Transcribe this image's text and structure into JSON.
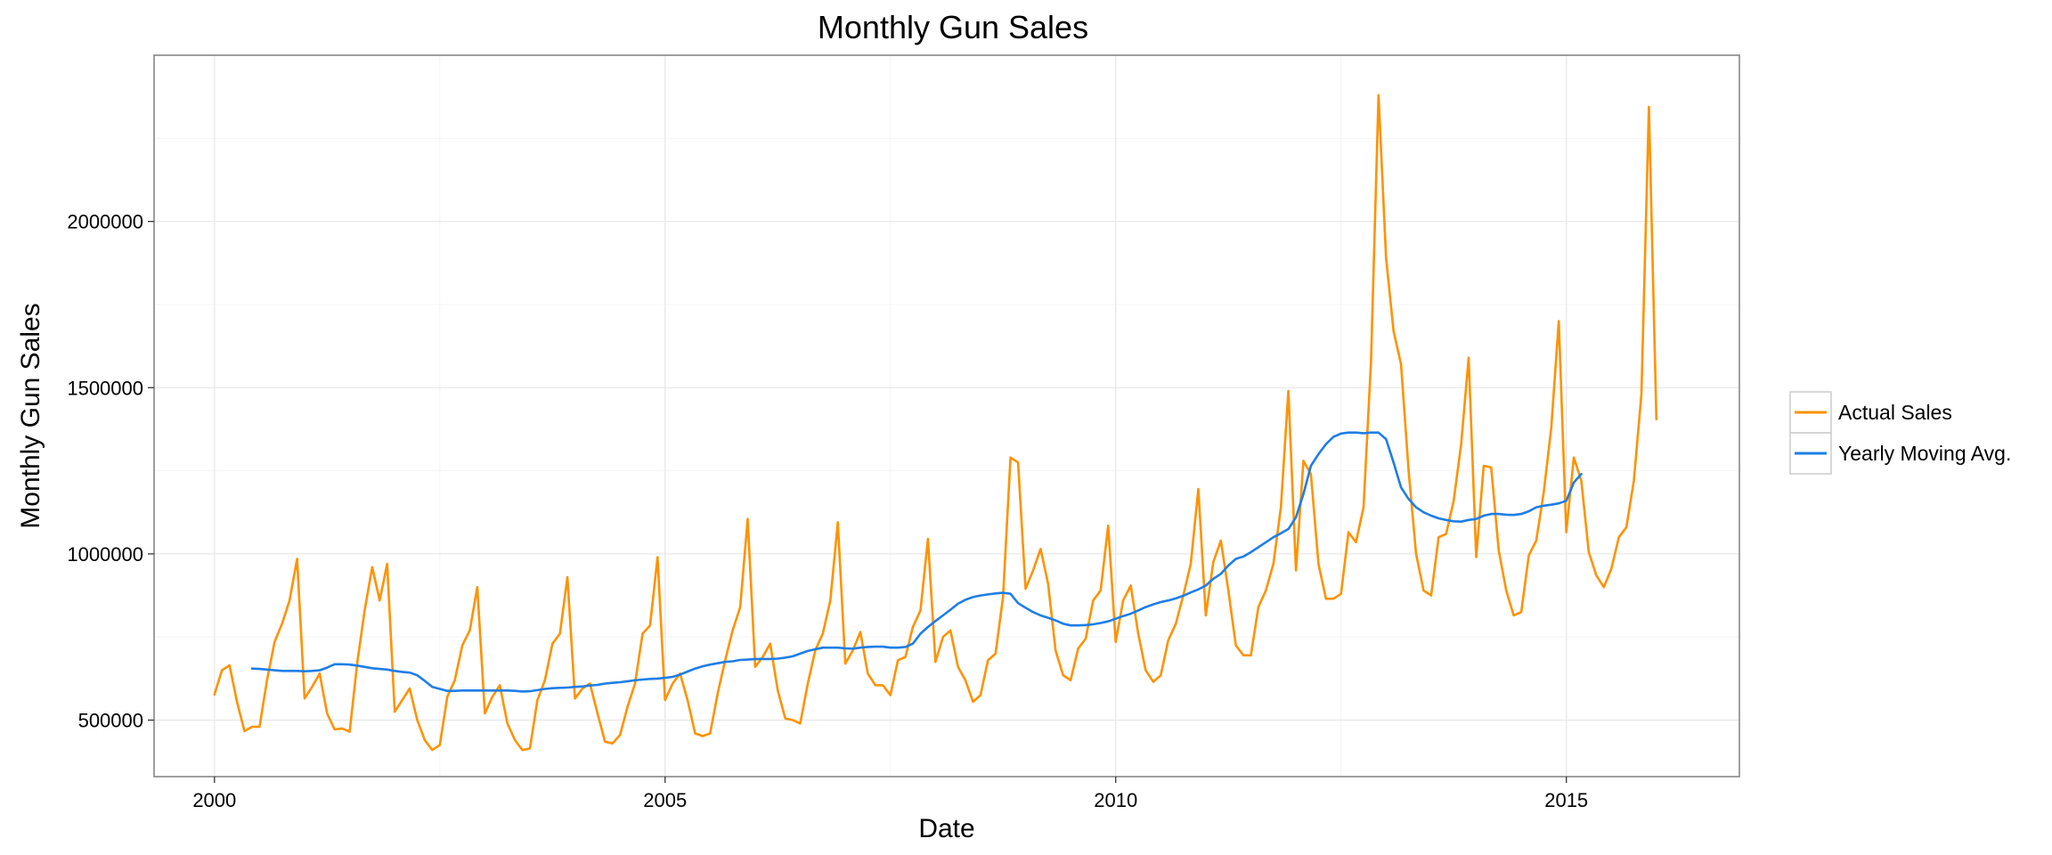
{
  "chart_data": {
    "type": "line",
    "title": "Monthly Gun Sales",
    "xlabel": "Date",
    "ylabel": "Monthly Gun Sales",
    "xlim": [
      1999.33,
      2016.92
    ],
    "ylim": [
      330000,
      2500000
    ],
    "x_ticks": [
      2000,
      2005,
      2010,
      2015
    ],
    "x_tick_labels": [
      "2000",
      "2005",
      "2010",
      "2015"
    ],
    "y_ticks": [
      500000,
      1000000,
      1500000,
      2000000
    ],
    "y_tick_labels": [
      "500000",
      "1000000",
      "1500000",
      "2000000"
    ],
    "grid": true,
    "legend_position": "right",
    "colors": {
      "actual": "#ff9200",
      "moving_avg": "#1e7ee6",
      "panel_border": "#7f7f7f",
      "grid_major": "#e8e8e8",
      "grid_minor": "#f4f4f4",
      "legend_key_border": "#cccccc"
    },
    "series": [
      {
        "name": "Actual Sales",
        "color": "#ff9200",
        "x_start": 2000.0,
        "x_step": 0.08333,
        "values": [
          577000,
          650000,
          665000,
          555000,
          467000,
          480000,
          480000,
          620000,
          735000,
          790000,
          860000,
          985000,
          565000,
          600000,
          640000,
          520000,
          472000,
          475000,
          465000,
          670000,
          830000,
          960000,
          860000,
          970000,
          525000,
          560000,
          595000,
          500000,
          440000,
          410000,
          425000,
          570000,
          620000,
          725000,
          770000,
          900000,
          520000,
          570000,
          605000,
          490000,
          440000,
          410000,
          415000,
          560000,
          620000,
          730000,
          760000,
          930000,
          565000,
          595000,
          610000,
          520000,
          435000,
          430000,
          455000,
          540000,
          610000,
          760000,
          785000,
          990000,
          560000,
          610000,
          640000,
          560000,
          460000,
          452000,
          460000,
          580000,
          680000,
          770000,
          840000,
          1105000,
          660000,
          690000,
          730000,
          590000,
          505000,
          500000,
          490000,
          610000,
          710000,
          760000,
          860000,
          1095000,
          670000,
          710000,
          765000,
          640000,
          605000,
          605000,
          575000,
          680000,
          690000,
          780000,
          830000,
          1045000,
          675000,
          750000,
          770000,
          660000,
          620000,
          555000,
          575000,
          680000,
          700000,
          870000,
          1290000,
          1275000,
          895000,
          950000,
          1015000,
          910000,
          710000,
          635000,
          620000,
          715000,
          745000,
          860000,
          890000,
          1085000,
          735000,
          860000,
          905000,
          760000,
          650000,
          615000,
          635000,
          740000,
          790000,
          875000,
          970000,
          1195000,
          815000,
          975000,
          1040000,
          890000,
          725000,
          695000,
          695000,
          840000,
          890000,
          970000,
          1140000,
          1490000,
          950000,
          1280000,
          1240000,
          970000,
          865000,
          865000,
          880000,
          1065000,
          1035000,
          1140000,
          1580000,
          2380000,
          1890000,
          1670000,
          1570000,
          1250000,
          1000000,
          890000,
          875000,
          1050000,
          1060000,
          1160000,
          1330000,
          1590000,
          990000,
          1265000,
          1260000,
          1010000,
          890000,
          815000,
          825000,
          995000,
          1040000,
          1185000,
          1380000,
          1700000,
          1065000,
          1290000,
          1220000,
          1005000,
          935000,
          900000,
          955000,
          1050000,
          1080000,
          1220000,
          1480000,
          2345000,
          1405000
        ]
      },
      {
        "name": "Yearly Moving Avg.",
        "color": "#1e7ee6",
        "x_start": 2000.4167,
        "x_step": 0.08333,
        "values": [
          655000,
          654000,
          652000,
          650000,
          648000,
          648000,
          648000,
          647000,
          648000,
          650000,
          658000,
          668000,
          668000,
          667000,
          664000,
          660000,
          656000,
          654000,
          652000,
          648000,
          645000,
          643000,
          635000,
          618000,
          600000,
          594000,
          588000,
          588000,
          589000,
          589000,
          589000,
          589000,
          589000,
          589000,
          589000,
          588000,
          586000,
          587000,
          590000,
          594000,
          596000,
          597000,
          598000,
          600000,
          601000,
          604000,
          606000,
          610000,
          612000,
          614000,
          617000,
          620000,
          622000,
          624000,
          625000,
          627000,
          630000,
          637000,
          646000,
          655000,
          662000,
          667000,
          671000,
          675000,
          677000,
          681000,
          682000,
          684000,
          684000,
          684000,
          685000,
          688000,
          692000,
          700000,
          708000,
          713000,
          718000,
          718000,
          718000,
          716000,
          715000,
          718000,
          720000,
          721000,
          721000,
          718000,
          718000,
          720000,
          730000,
          760000,
          780000,
          798000,
          815000,
          832000,
          850000,
          862000,
          870000,
          875000,
          878000,
          881000,
          883000,
          880000,
          852000,
          838000,
          825000,
          815000,
          808000,
          800000,
          790000,
          785000,
          785000,
          786000,
          788000,
          792000,
          797000,
          805000,
          813000,
          820000,
          830000,
          840000,
          848000,
          855000,
          860000,
          866000,
          874000,
          884000,
          893000,
          905000,
          925000,
          940000,
          965000,
          985000,
          992000,
          1005000,
          1020000,
          1035000,
          1050000,
          1062000,
          1075000,
          1110000,
          1180000,
          1265000,
          1300000,
          1330000,
          1352000,
          1362000,
          1365000,
          1365000,
          1363000,
          1365000,
          1365000,
          1345000,
          1275000,
          1200000,
          1165000,
          1140000,
          1125000,
          1115000,
          1107000,
          1102000,
          1098000,
          1097000,
          1102000,
          1105000,
          1115000,
          1120000,
          1120000,
          1118000,
          1117000,
          1120000,
          1128000,
          1140000,
          1145000,
          1148000,
          1152000,
          1160000,
          1215000,
          1240000
        ]
      }
    ]
  }
}
